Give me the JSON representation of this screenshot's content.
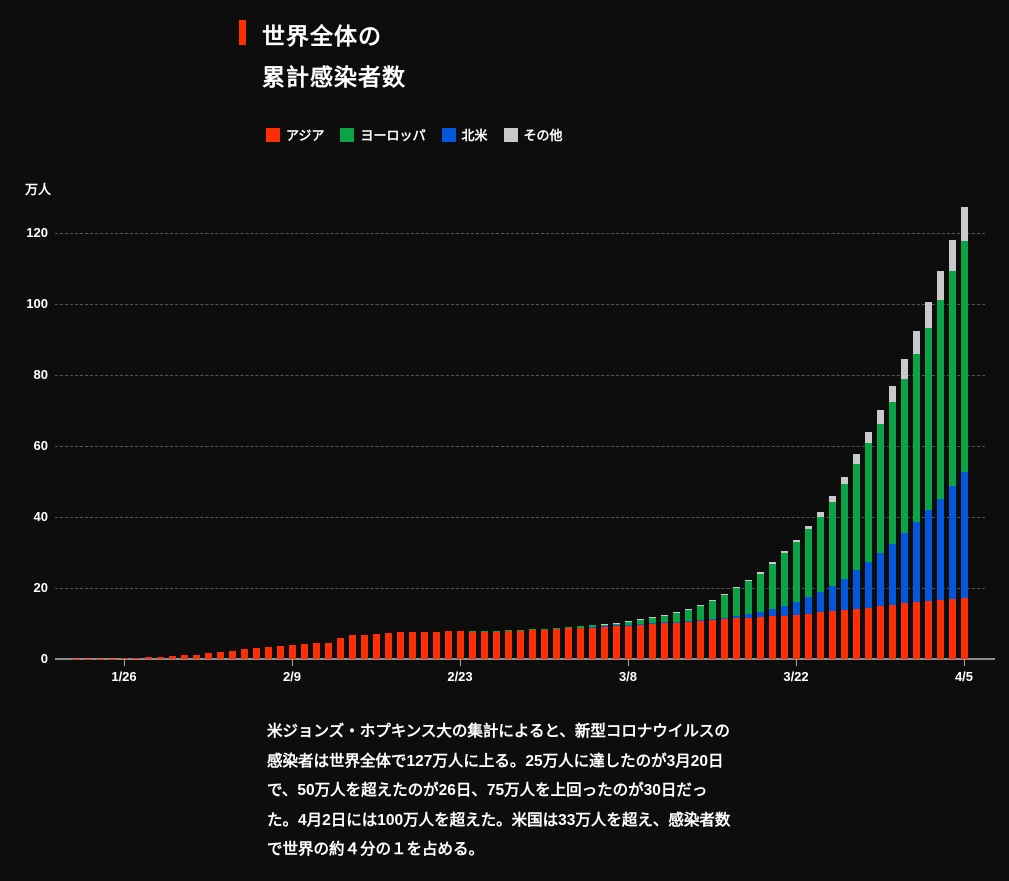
{
  "header": {
    "title_line1": "世界全体の",
    "title_line2": "累計感染者数",
    "accent_color": "#ff2f05"
  },
  "legend": {
    "items": [
      {
        "label": "アジア",
        "color": "#ff2f05"
      },
      {
        "label": "ヨーロッパ",
        "color": "#0aa345"
      },
      {
        "label": "北米",
        "color": "#0357dd"
      },
      {
        "label": "その他",
        "color": "#c9c9c9"
      }
    ]
  },
  "chart_data": {
    "type": "bar",
    "stacked": true,
    "title": "世界全体の累計感染者数",
    "xlabel": "",
    "ylabel": "万人",
    "unit_label": "万人",
    "ylim": [
      0,
      128.5
    ],
    "yticks": [
      0,
      20,
      40,
      60,
      80,
      100,
      120
    ],
    "grid": "dashed-horizontal",
    "legend_position": "top",
    "stack_order": "bottom-to-top: アジア, 北米, ヨーロッパ, その他",
    "xticks": [
      "1/26",
      "2/9",
      "2/23",
      "3/8",
      "3/22",
      "4/5"
    ],
    "xtick_indices": [
      4,
      18,
      32,
      46,
      60,
      74
    ],
    "dates": [
      "1/22",
      "1/23",
      "1/24",
      "1/25",
      "1/26",
      "1/27",
      "1/28",
      "1/29",
      "1/30",
      "1/31",
      "2/1",
      "2/2",
      "2/3",
      "2/4",
      "2/5",
      "2/6",
      "2/7",
      "2/8",
      "2/9",
      "2/10",
      "2/11",
      "2/12",
      "2/13",
      "2/14",
      "2/15",
      "2/16",
      "2/17",
      "2/18",
      "2/19",
      "2/20",
      "2/21",
      "2/22",
      "2/23",
      "2/24",
      "2/25",
      "2/26",
      "2/27",
      "2/28",
      "2/29",
      "3/1",
      "3/2",
      "3/3",
      "3/4",
      "3/5",
      "3/6",
      "3/7",
      "3/8",
      "3/9",
      "3/10",
      "3/11",
      "3/12",
      "3/13",
      "3/14",
      "3/15",
      "3/16",
      "3/17",
      "3/18",
      "3/19",
      "3/20",
      "3/21",
      "3/22",
      "3/23",
      "3/24",
      "3/25",
      "3/26",
      "3/27",
      "3/28",
      "3/29",
      "3/30",
      "3/31",
      "4/1",
      "4/2",
      "4/3",
      "4/4",
      "4/5"
    ],
    "series": [
      {
        "name": "アジア",
        "color": "#ff2f05",
        "values": [
          0.06,
          0.07,
          0.09,
          0.14,
          0.21,
          0.29,
          0.55,
          0.61,
          0.82,
          0.99,
          1.2,
          1.67,
          1.98,
          2.38,
          2.77,
          3.12,
          3.45,
          3.72,
          4.0,
          4.26,
          4.46,
          4.5,
          6.02,
          6.67,
          6.88,
          7.1,
          7.31,
          7.49,
          7.54,
          7.62,
          7.64,
          7.77,
          7.83,
          7.87,
          7.9,
          7.95,
          8.0,
          8.07,
          8.24,
          8.38,
          8.52,
          8.66,
          8.8,
          8.97,
          9.19,
          9.42,
          9.64,
          9.84,
          10.02,
          10.2,
          10.36,
          10.57,
          10.8,
          11.0,
          11.2,
          11.42,
          11.62,
          11.8,
          12.0,
          12.25,
          12.5,
          12.8,
          13.1,
          13.4,
          13.75,
          14.1,
          14.5,
          14.9,
          15.3,
          15.7,
          16.1,
          16.45,
          16.75,
          17.0,
          17.3
        ]
      },
      {
        "name": "北米",
        "color": "#0357dd",
        "values": [
          0,
          0,
          0,
          0,
          0,
          0,
          0,
          0,
          0,
          0,
          0,
          0,
          0,
          0,
          0,
          0,
          0,
          0,
          0,
          0,
          0,
          0,
          0,
          0,
          0,
          0,
          0,
          0,
          0,
          0,
          0,
          0,
          0,
          0.01,
          0.01,
          0.01,
          0.01,
          0.01,
          0.01,
          0.01,
          0.01,
          0.02,
          0.02,
          0.03,
          0.04,
          0.04,
          0.06,
          0.07,
          0.1,
          0.13,
          0.17,
          0.23,
          0.29,
          0.37,
          0.48,
          0.65,
          0.92,
          1.3,
          1.95,
          2.6,
          3.5,
          4.7,
          5.7,
          7.1,
          8.8,
          10.9,
          12.95,
          15.0,
          17.1,
          19.7,
          22.5,
          25.4,
          28.4,
          31.7,
          35.5
        ]
      },
      {
        "name": "ヨーロッパ",
        "color": "#0aa345",
        "values": [
          0,
          0,
          0,
          0,
          0,
          0,
          0,
          0,
          0,
          0,
          0,
          0,
          0,
          0,
          0,
          0,
          0,
          0,
          0,
          0,
          0,
          0,
          0,
          0,
          0,
          0,
          0,
          0,
          0,
          0,
          0.01,
          0.01,
          0.02,
          0.03,
          0.05,
          0.06,
          0.08,
          0.1,
          0.13,
          0.17,
          0.22,
          0.29,
          0.37,
          0.47,
          0.6,
          0.78,
          0.97,
          1.22,
          1.55,
          1.95,
          2.5,
          3.2,
          4.1,
          5.2,
          6.4,
          7.8,
          9.5,
          10.9,
          12.9,
          15.0,
          16.9,
          19.0,
          21.2,
          23.7,
          26.7,
          30.0,
          33.3,
          36.4,
          39.9,
          43.6,
          47.4,
          51.3,
          56.1,
          60.6,
          65.0
        ]
      },
      {
        "name": "その他",
        "color": "#c9c9c9",
        "values": [
          0,
          0,
          0,
          0,
          0,
          0,
          0,
          0,
          0,
          0,
          0,
          0,
          0,
          0,
          0,
          0,
          0,
          0,
          0,
          0,
          0,
          0,
          0,
          0,
          0,
          0,
          0,
          0,
          0,
          0,
          0,
          0,
          0,
          0,
          0,
          0,
          0,
          0.01,
          0.01,
          0.01,
          0.01,
          0.01,
          0.02,
          0.02,
          0.03,
          0.03,
          0.04,
          0.05,
          0.06,
          0.08,
          0.1,
          0.12,
          0.15,
          0.18,
          0.22,
          0.28,
          0.35,
          0.42,
          0.55,
          0.65,
          0.75,
          1.0,
          1.3,
          1.7,
          2.15,
          2.65,
          3.25,
          3.9,
          4.6,
          5.5,
          6.4,
          7.4,
          8.1,
          8.8,
          9.5
        ]
      }
    ]
  },
  "caption": {
    "text": "米ジョンズ・ホプキンス大の集計によると、新型コロナウイルスの\n感染者は世界全体で127万人に上る。25万人に達したのが3月20日\nで、50万人を超えたのが26日、75万人を上回ったのが30日だっ\nた。4月2日には100万人を超えた。米国は33万人を超え、感染者数\nで世界の約４分の１を占める。"
  }
}
